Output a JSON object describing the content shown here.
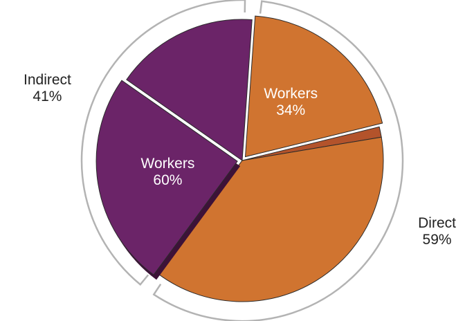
{
  "chart_data": {
    "type": "pie",
    "groups": [
      {
        "name": "Direct",
        "value": 59,
        "value_label": "59%",
        "slices": [
          {
            "name": "Workers",
            "value": 34,
            "value_label": "34%",
            "color": "#d07430"
          },
          {
            "name": null,
            "value": 2,
            "color": "#b3532b"
          },
          {
            "name": null,
            "value": 64,
            "color": "#d07430"
          }
        ]
      },
      {
        "name": "Indirect",
        "value": 41,
        "value_label": "41%",
        "slices": [
          {
            "name": "Workers",
            "value": 60,
            "value_label": "60%",
            "color": "#6b2468"
          },
          {
            "name": null,
            "value": 40,
            "color": "#6b2468"
          }
        ]
      }
    ],
    "bracket_color": "#b3b3b3"
  }
}
